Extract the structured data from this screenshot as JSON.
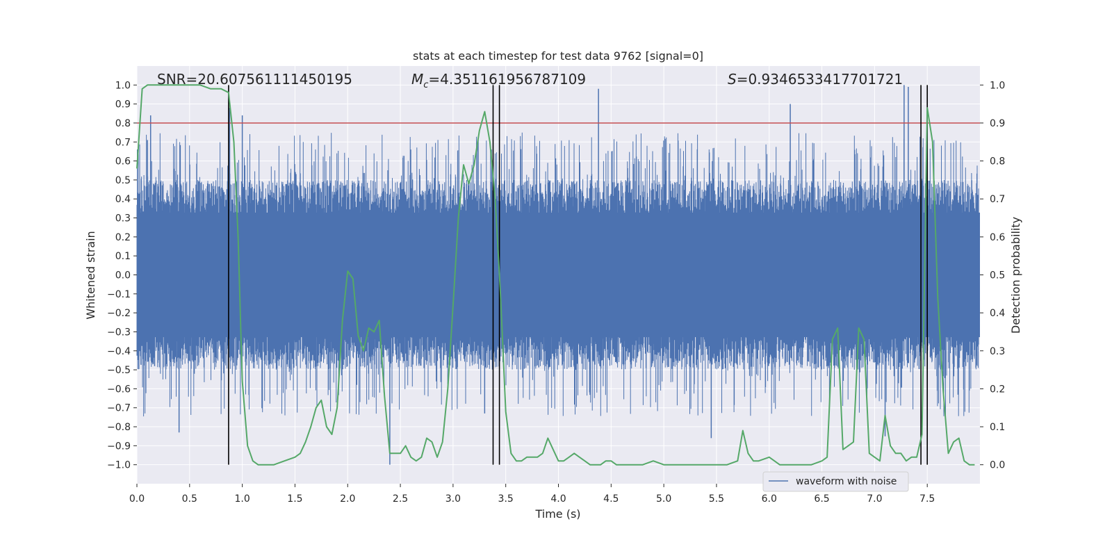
{
  "chart_data": {
    "type": "line",
    "title": "stats at each timestep for test data 9762 [signal=0]",
    "xlabel": "Time (s)",
    "ylabel_left": "Whitened strain",
    "ylabel_right": "Detection probability",
    "xlim": [
      0.0,
      8.0
    ],
    "ylim_left": [
      -1.1,
      1.1
    ],
    "ylim_right": [
      -0.05,
      1.05
    ],
    "x_ticks": [
      "0.0",
      "0.5",
      "1.0",
      "1.5",
      "2.0",
      "2.5",
      "3.0",
      "3.5",
      "4.0",
      "4.5",
      "5.0",
      "5.5",
      "6.0",
      "6.5",
      "7.0",
      "7.5"
    ],
    "y_left_ticks": [
      "1.0",
      "0.9",
      "0.8",
      "0.7",
      "0.6",
      "0.5",
      "0.4",
      "0.3",
      "0.2",
      "0.1",
      "0.0",
      "−0.1",
      "−0.2",
      "−0.3",
      "−0.4",
      "−0.5",
      "−0.6",
      "−0.7",
      "−0.8",
      "−0.9",
      "−1.0"
    ],
    "y_right_ticks": [
      "1.0",
      "0.9",
      "0.8",
      "0.7",
      "0.6",
      "0.5",
      "0.4",
      "0.3",
      "0.2",
      "0.1",
      "0.0"
    ],
    "grid": true,
    "legend": {
      "label": "waveform with noise",
      "position": "lower-right"
    },
    "annotations": {
      "snr": "SNR=20.607561111450195",
      "mc_symbol": "M",
      "mc_sub": "c",
      "mc_value": "=4.351161956787109",
      "s_symbol": "S",
      "s_value": "=0.9346533417701721"
    },
    "threshold_line": {
      "y": 0.8,
      "axis": "left",
      "color": "#c44e52"
    },
    "vertical_lines": [
      0.87,
      3.38,
      3.44,
      7.44,
      7.5
    ],
    "waveform_envelope": {
      "min_y": -1.0,
      "max_y": 1.0,
      "dense_core": 0.4,
      "spikes": [
        {
          "x": 0.1,
          "y": 0.71
        },
        {
          "x": 0.13,
          "y": 0.84
        },
        {
          "x": 0.4,
          "y": -0.83
        },
        {
          "x": 0.88,
          "y": 0.88
        },
        {
          "x": 1.0,
          "y": 0.84
        },
        {
          "x": 2.4,
          "y": -1.0
        },
        {
          "x": 3.3,
          "y": -0.73
        },
        {
          "x": 4.38,
          "y": 0.98
        },
        {
          "x": 5.45,
          "y": -0.86
        },
        {
          "x": 6.2,
          "y": 0.9
        },
        {
          "x": 7.28,
          "y": 1.0
        },
        {
          "x": 7.32,
          "y": 0.99
        },
        {
          "x": 7.1,
          "y": -0.85
        }
      ]
    },
    "series": [
      {
        "name": "detection probability",
        "axis": "right",
        "color": "#55a868",
        "x": [
          0.0,
          0.05,
          0.1,
          0.2,
          0.3,
          0.4,
          0.5,
          0.6,
          0.7,
          0.8,
          0.87,
          0.92,
          0.96,
          1.0,
          1.05,
          1.1,
          1.15,
          1.2,
          1.3,
          1.4,
          1.5,
          1.55,
          1.6,
          1.65,
          1.7,
          1.75,
          1.8,
          1.85,
          1.9,
          1.95,
          2.0,
          2.05,
          2.1,
          2.15,
          2.2,
          2.25,
          2.3,
          2.35,
          2.4,
          2.45,
          2.5,
          2.55,
          2.6,
          2.65,
          2.7,
          2.75,
          2.8,
          2.85,
          2.9,
          2.95,
          3.0,
          3.05,
          3.1,
          3.15,
          3.2,
          3.25,
          3.3,
          3.35,
          3.4,
          3.45,
          3.5,
          3.55,
          3.6,
          3.65,
          3.7,
          3.75,
          3.8,
          3.85,
          3.9,
          3.95,
          4.0,
          4.05,
          4.1,
          4.15,
          4.2,
          4.25,
          4.3,
          4.35,
          4.4,
          4.45,
          4.5,
          4.55,
          4.6,
          4.7,
          4.8,
          4.9,
          5.0,
          5.05,
          5.1,
          5.2,
          5.3,
          5.4,
          5.5,
          5.6,
          5.7,
          5.75,
          5.8,
          5.85,
          5.9,
          6.0,
          6.05,
          6.1,
          6.2,
          6.3,
          6.4,
          6.5,
          6.55,
          6.6,
          6.65,
          6.7,
          6.75,
          6.8,
          6.85,
          6.9,
          6.95,
          7.0,
          7.05,
          7.1,
          7.15,
          7.2,
          7.25,
          7.3,
          7.35,
          7.4,
          7.45,
          7.5,
          7.55,
          7.6,
          7.65,
          7.7,
          7.75,
          7.8,
          7.85,
          7.9,
          7.95
        ],
        "y": [
          0.78,
          0.99,
          1.0,
          1.0,
          1.0,
          1.0,
          1.0,
          1.0,
          0.99,
          0.99,
          0.98,
          0.85,
          0.6,
          0.22,
          0.05,
          0.01,
          0.0,
          0.0,
          0.0,
          0.01,
          0.02,
          0.03,
          0.06,
          0.1,
          0.15,
          0.17,
          0.1,
          0.08,
          0.15,
          0.38,
          0.51,
          0.49,
          0.34,
          0.3,
          0.36,
          0.35,
          0.38,
          0.18,
          0.03,
          0.03,
          0.03,
          0.05,
          0.02,
          0.01,
          0.02,
          0.07,
          0.06,
          0.02,
          0.06,
          0.2,
          0.42,
          0.65,
          0.79,
          0.74,
          0.79,
          0.88,
          0.93,
          0.85,
          0.7,
          0.45,
          0.14,
          0.03,
          0.01,
          0.01,
          0.02,
          0.02,
          0.02,
          0.03,
          0.07,
          0.04,
          0.01,
          0.01,
          0.02,
          0.03,
          0.02,
          0.01,
          0.0,
          0.0,
          0.0,
          0.01,
          0.01,
          0.0,
          0.0,
          0.0,
          0.0,
          0.01,
          0.0,
          0.0,
          0.0,
          0.0,
          0.0,
          0.0,
          0.0,
          0.0,
          0.01,
          0.09,
          0.03,
          0.01,
          0.01,
          0.02,
          0.01,
          0.0,
          0.0,
          0.0,
          0.0,
          0.01,
          0.02,
          0.33,
          0.36,
          0.04,
          0.05,
          0.06,
          0.36,
          0.33,
          0.03,
          0.02,
          0.01,
          0.13,
          0.05,
          0.03,
          0.03,
          0.01,
          0.02,
          0.02,
          0.08,
          0.94,
          0.85,
          0.44,
          0.2,
          0.03,
          0.06,
          0.07,
          0.01,
          0.0,
          0.0
        ]
      }
    ]
  }
}
